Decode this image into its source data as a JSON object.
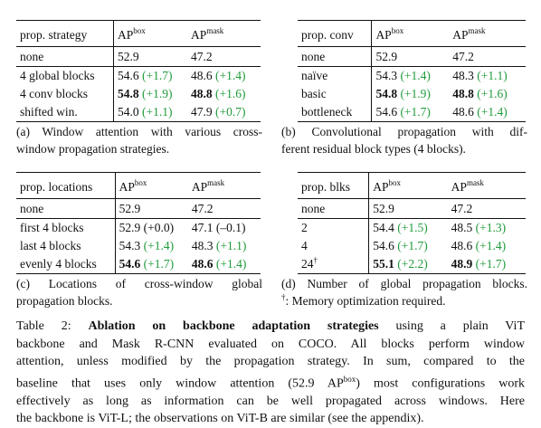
{
  "colors": {
    "delta": "#1f9a3a",
    "text": "#111111"
  },
  "tables": [
    {
      "id": "a",
      "header": {
        "col0": "prop. strategy",
        "ap_box_base": "AP",
        "ap_box_sup": "box",
        "ap_mask_base": "AP",
        "ap_mask_sup": "mask"
      },
      "rows": [
        {
          "label": "none",
          "box": "52.9",
          "box_delta": "",
          "box_bold": false,
          "mask": "47.2",
          "mask_delta": "",
          "mask_bold": false
        },
        {
          "label": "4 global blocks",
          "box": "54.6",
          "box_delta": "(+1.7)",
          "box_bold": false,
          "mask": "48.6",
          "mask_delta": "(+1.4)",
          "mask_bold": false
        },
        {
          "label": "4 conv blocks",
          "box": "54.8",
          "box_delta": "(+1.9)",
          "box_bold": true,
          "mask": "48.8",
          "mask_delta": "(+1.6)",
          "mask_bold": true
        },
        {
          "label": "shifted win.",
          "box": "54.0",
          "box_delta": "(+1.1)",
          "box_bold": false,
          "mask": "47.9",
          "mask_delta": "(+0.7)",
          "mask_bold": false
        }
      ],
      "caption": [
        "(a) Window attention with various cross-",
        "window propagation strategies."
      ]
    },
    {
      "id": "b",
      "header": {
        "col0": "prop. conv",
        "ap_box_base": "AP",
        "ap_box_sup": "box",
        "ap_mask_base": "AP",
        "ap_mask_sup": "mask"
      },
      "rows": [
        {
          "label": "none",
          "box": "52.9",
          "box_delta": "",
          "box_bold": false,
          "mask": "47.2",
          "mask_delta": "",
          "mask_bold": false
        },
        {
          "label": "naïve",
          "box": "54.3",
          "box_delta": "(+1.4)",
          "box_bold": false,
          "mask": "48.3",
          "mask_delta": "(+1.1)",
          "mask_bold": false
        },
        {
          "label": "basic",
          "box": "54.8",
          "box_delta": "(+1.9)",
          "box_bold": true,
          "mask": "48.8",
          "mask_delta": "(+1.6)",
          "mask_bold": true
        },
        {
          "label": "bottleneck",
          "box": "54.6",
          "box_delta": "(+1.7)",
          "box_bold": false,
          "mask": "48.6",
          "mask_delta": "(+1.4)",
          "mask_bold": false
        }
      ],
      "caption": [
        "(b) Convolutional propagation with dif-",
        "ferent residual block types (4 blocks)."
      ]
    },
    {
      "id": "c",
      "header": {
        "col0": "prop. locations",
        "ap_box_base": "AP",
        "ap_box_sup": "box",
        "ap_mask_base": "AP",
        "ap_mask_sup": "mask"
      },
      "rows": [
        {
          "label": "none",
          "box": "52.9",
          "box_delta": "",
          "box_bold": false,
          "mask": "47.2",
          "mask_delta": "",
          "mask_bold": false
        },
        {
          "label": "first 4 blocks",
          "box": "52.9",
          "box_delta": "(+0.0)",
          "box_bold": false,
          "mask": "47.1",
          "mask_delta": "(–0.1)",
          "mask_bold": false
        },
        {
          "label": "last 4 blocks",
          "box": "54.3",
          "box_delta": "(+1.4)",
          "box_bold": false,
          "mask": "48.3",
          "mask_delta": "(+1.1)",
          "mask_bold": false
        },
        {
          "label": "evenly 4 blocks",
          "box": "54.6",
          "box_delta": "(+1.7)",
          "box_bold": true,
          "mask": "48.6",
          "mask_delta": "(+1.4)",
          "mask_bold": true
        }
      ],
      "caption": [
        "(c) Locations of cross-window global",
        "propagation blocks."
      ]
    },
    {
      "id": "d",
      "header": {
        "col0": "prop. blks",
        "ap_box_base": "AP",
        "ap_box_sup": "box",
        "ap_mask_base": "AP",
        "ap_mask_sup": "mask"
      },
      "rows": [
        {
          "label": "none",
          "box": "52.9",
          "box_delta": "",
          "box_bold": false,
          "mask": "47.2",
          "mask_delta": "",
          "mask_bold": false
        },
        {
          "label": "2",
          "box": "54.4",
          "box_delta": "(+1.5)",
          "box_bold": false,
          "mask": "48.5",
          "mask_delta": "(+1.3)",
          "mask_bold": false
        },
        {
          "label": "4",
          "box": "54.6",
          "box_delta": "(+1.7)",
          "box_bold": false,
          "mask": "48.6",
          "mask_delta": "(+1.4)",
          "mask_bold": false
        },
        {
          "label": "24",
          "label_sup": "†",
          "box": "55.1",
          "box_delta": "(+2.2)",
          "box_bold": true,
          "mask": "48.9",
          "mask_delta": "(+1.7)",
          "mask_bold": true
        }
      ],
      "caption": [
        "(d) Number of global propagation blocks.",
        "Memory optimization required."
      ],
      "caption_dagger": "†"
    }
  ],
  "main_caption": {
    "label": "Table 2:",
    "title": "Ablation on backbone adaptation strategies",
    "lines": [
      " using a plain ViT",
      "backbone and Mask R-CNN evaluated on COCO. All blocks perform window",
      "attention, unless modified by the propagation strategy. In sum, compared to the",
      "baseline that uses only window attention (52.9 AP",
      "box",
      ") most configurations work",
      "effectively as long as information can be well propagated across windows. Here",
      "the backbone is ViT-L; the observations on ViT-B are similar (see the appendix)."
    ]
  }
}
